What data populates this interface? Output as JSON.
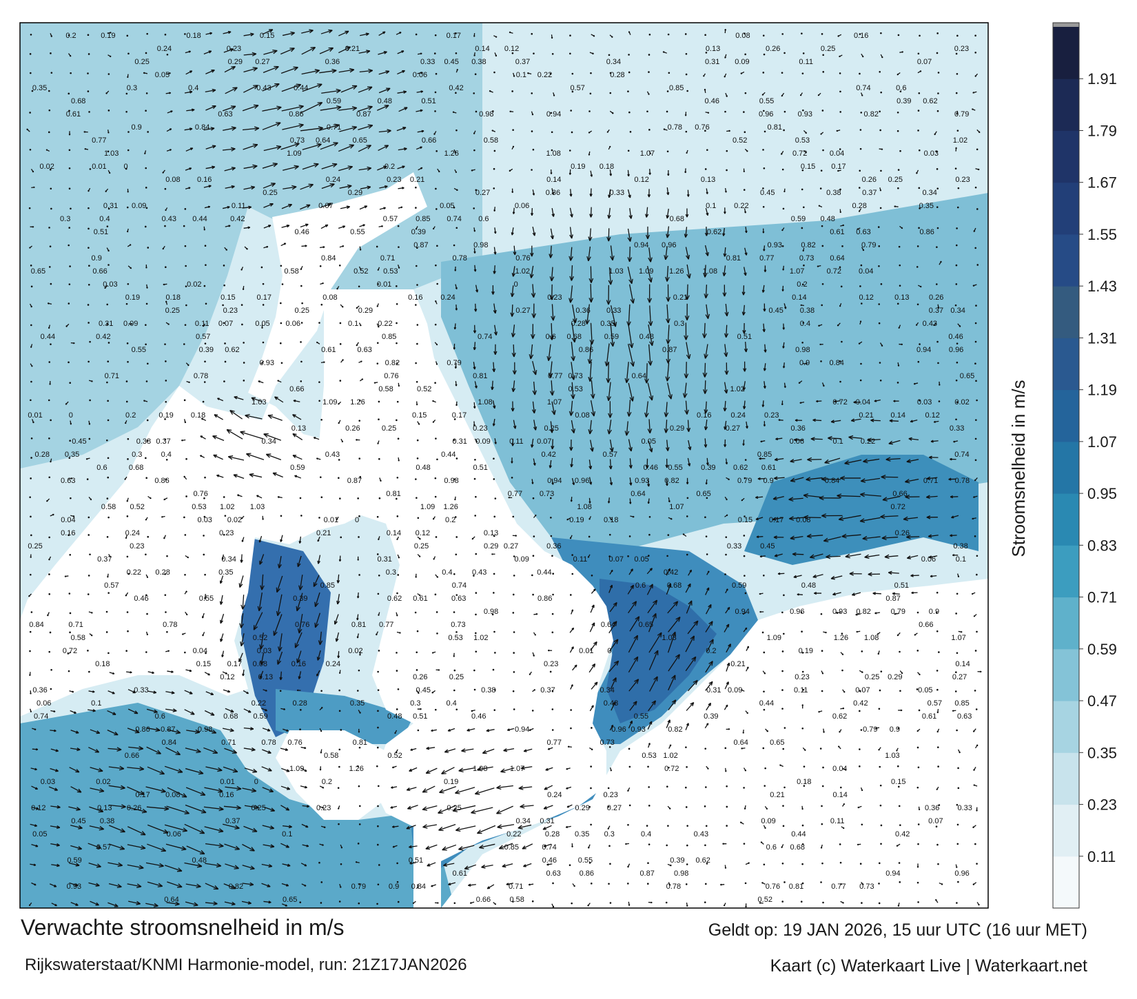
{
  "footer": {
    "title": "Verwachte stroomsnelheid in m/s",
    "run_info": "Rijkswaterstaat/KNMI Harmonie-model, run: 21Z17JAN2026",
    "valid_time": "Geldt op: 19 JAN 2026, 15 uur UTC (16 uur MET)",
    "credit": "Kaart (c) Waterkaart Live | Waterkaart.net"
  },
  "colorbar": {
    "title": "Stroomsnelheid in m/s",
    "ticks": [
      "0.11",
      "0.23",
      "0.35",
      "0.47",
      "0.59",
      "0.71",
      "0.83",
      "0.95",
      "1.07",
      "1.19",
      "1.31",
      "1.43",
      "1.55",
      "1.67",
      "1.79",
      "1.91"
    ],
    "colors": [
      "#f4f9fb",
      "#e1eff4",
      "#c8e3ec",
      "#a7d4e2",
      "#84c3d7",
      "#5fb1cb",
      "#3c9dbf",
      "#2a89b2",
      "#2476a6",
      "#24649b",
      "#2a5990",
      "#345b7f",
      "#264b86",
      "#223f78",
      "#1f3468",
      "#1c2a55",
      "#181f3f"
    ]
  },
  "map": {
    "colors": {
      "water_light": "#cfe7f0",
      "water_mid": "#7fbfd6",
      "water_strong": "#3d8fbb",
      "water_max": "#2a64a0",
      "land": "#ffffff"
    },
    "speed_labels": [
      "0.2",
      "0.19",
      "0.18",
      "0.15",
      "0.17",
      "0.08",
      "0.16",
      "0.24",
      "0.23",
      "0.21",
      "0.14",
      "0.12",
      "0.13",
      "0.26",
      "0.25",
      "0.23",
      "0.25",
      "0.29",
      "0.27",
      "0.36",
      "0.33",
      "0.45",
      "0.38",
      "0.37",
      "0.34",
      "0.31",
      "0.09",
      "0.11",
      "0.07",
      "0.05",
      "0.06",
      "0.1",
      "0.22",
      "0.28",
      "0.35",
      "0.3",
      "0.4",
      "0.43",
      "0.44",
      "0.42",
      "0.57",
      "0.85",
      "0.74",
      "0.6",
      "0.68",
      "0.59",
      "0.48",
      "0.51",
      "0.46",
      "0.55",
      "0.39",
      "0.62",
      "0.61",
      "0.63",
      "0.86",
      "0.87",
      "0.98",
      "0.94",
      "0.96",
      "0.93",
      "0.82",
      "0.79",
      "0.9",
      "0.84",
      "0.71",
      "0.78",
      "0.76",
      "0.81",
      "0.77",
      "0.73",
      "0.64",
      "0.65",
      "0.66",
      "0.58",
      "0.52",
      "0.53",
      "1.02",
      "1.03",
      "1.09",
      "1.26",
      "1.08",
      "1.07",
      "0.72",
      "0.04",
      "0.03",
      "0.02",
      "0.01",
      "0"
    ]
  }
}
